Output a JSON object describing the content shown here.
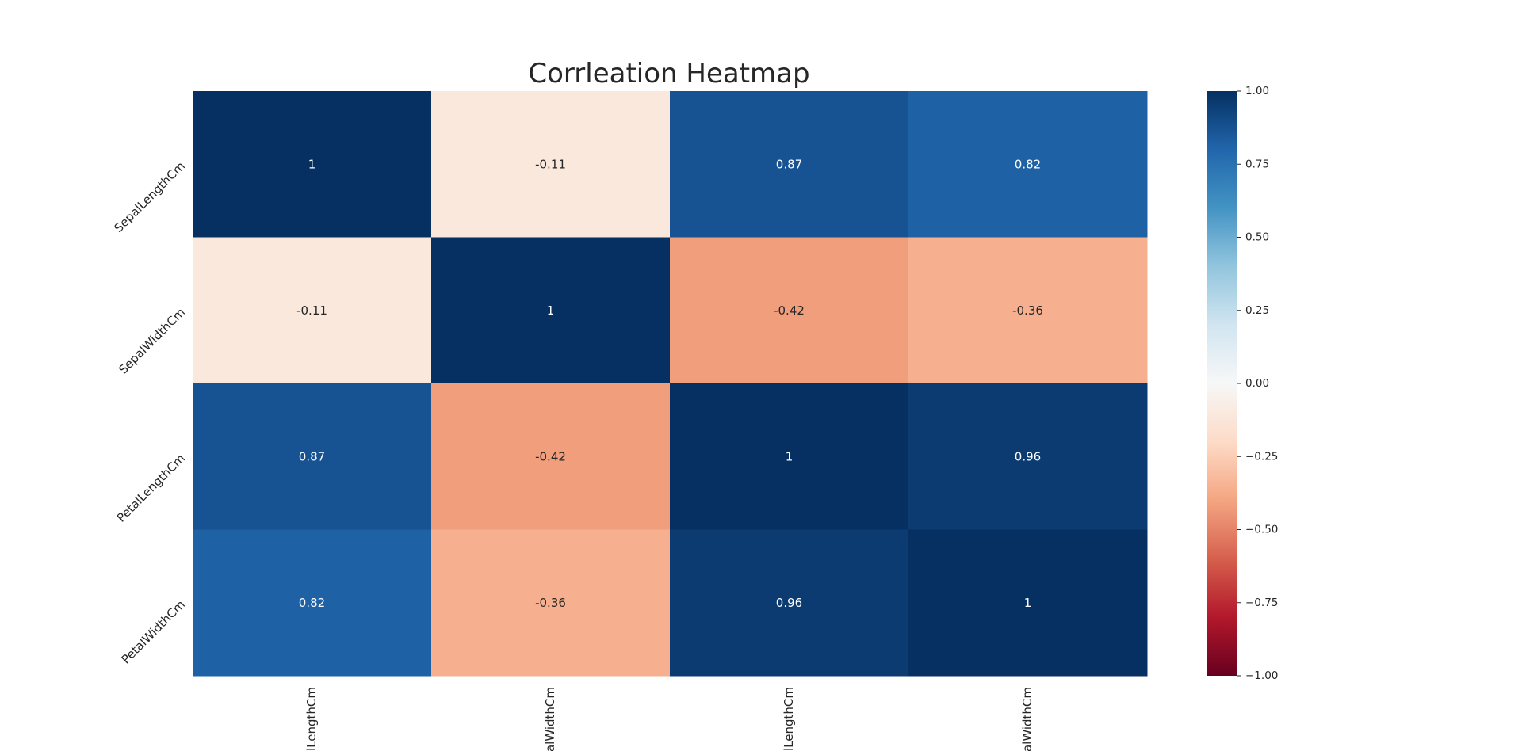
{
  "chart_data": {
    "type": "heatmap",
    "title": "Corrleation Heatmap",
    "rows": [
      "SepalLengthCm",
      "SepalWidthCm",
      "PetalLengthCm",
      "PetalWidthCm"
    ],
    "columns": [
      "SepalLengthCm",
      "SepalWidthCm",
      "PetalLengthCm",
      "PetalWidthCm"
    ],
    "values": [
      [
        1,
        -0.11,
        0.87,
        0.82
      ],
      [
        -0.11,
        1,
        -0.42,
        -0.36
      ],
      [
        0.87,
        -0.42,
        1,
        0.96
      ],
      [
        0.82,
        -0.36,
        0.96,
        1
      ]
    ],
    "annotations": [
      [
        "1",
        "-0.11",
        "0.87",
        "0.82"
      ],
      [
        "-0.11",
        "1",
        "-0.42",
        "-0.36"
      ],
      [
        "0.87",
        "-0.42",
        "1",
        "0.96"
      ],
      [
        "0.82",
        "-0.36",
        "0.96",
        "1"
      ]
    ],
    "colormap": "RdBu",
    "vmin": -1,
    "vmax": 1,
    "colorbar": {
      "ticks": [
        1.0,
        0.75,
        0.5,
        0.25,
        0.0,
        -0.25,
        -0.5,
        -0.75,
        -1.0
      ],
      "tick_labels": [
        "1.00",
        "0.75",
        "0.50",
        "0.25",
        "0.00",
        "−0.25",
        "−0.50",
        "−0.75",
        "−1.00"
      ]
    },
    "grid": false
  }
}
